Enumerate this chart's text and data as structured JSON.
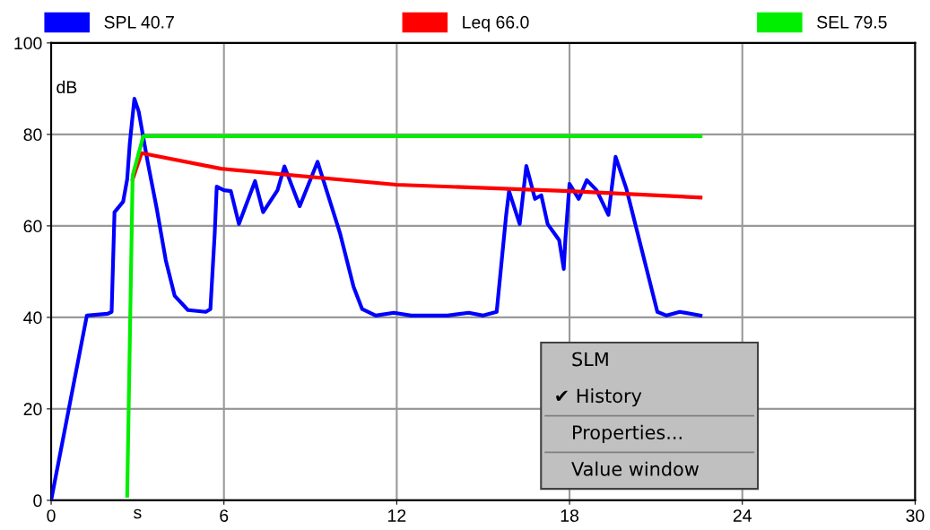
{
  "chart_data": {
    "type": "line",
    "ylabel": "dB",
    "xlabel": "s",
    "xlim": [
      0,
      30
    ],
    "xticks": [
      0,
      6,
      12,
      18,
      24,
      30
    ],
    "ylim": [
      0,
      100
    ],
    "yticks": [
      0,
      20,
      40,
      60,
      80,
      100
    ],
    "grid": true,
    "legend": "top",
    "marker": "none",
    "line_style": "solid",
    "annotations": [
      "SLM",
      "✔ History",
      "Properties...",
      "Value window"
    ],
    "series": [
      {
        "name": "SPL 40.7",
        "color": "#0000ff",
        "x": [
          0,
          1.24,
          1.96,
          2.1,
          2.2,
          2.5,
          2.64,
          2.73,
          2.89,
          3.04,
          3.35,
          3.66,
          3.98,
          4.29,
          4.75,
          5.37,
          5.53,
          5.68,
          5.75,
          6.0,
          6.24,
          6.52,
          7.08,
          7.36,
          7.86,
          8.1,
          8.63,
          9.25,
          10.03,
          10.5,
          10.8,
          11.27,
          11.9,
          12.5,
          13.76,
          14.5,
          15.0,
          15.47,
          15.8,
          15.9,
          16.27,
          16.5,
          16.8,
          17.02,
          17.24,
          17.64,
          17.8,
          17.86,
          18.0,
          18.32,
          18.6,
          18.94,
          19.35,
          19.6,
          19.97,
          20.6,
          21.05,
          21.37,
          21.83,
          22.55
        ],
        "values": [
          0,
          40.4,
          40.8,
          41.2,
          63,
          65.3,
          70.2,
          78,
          87.8,
          85,
          74,
          64,
          52.5,
          44.7,
          41.6,
          41.2,
          41.8,
          58.4,
          68.6,
          67.8,
          67.6,
          60.4,
          69.8,
          63,
          67.8,
          73,
          64.3,
          74,
          58.4,
          46.7,
          41.8,
          40.4,
          41,
          40.4,
          40.4,
          41,
          40.4,
          41.2,
          62.4,
          67.6,
          60.4,
          73.1,
          65.9,
          66.7,
          60.4,
          56.9,
          50.6,
          57.5,
          69.2,
          65.9,
          70,
          67.8,
          62.4,
          75.1,
          68.2,
          52.5,
          41.2,
          40.4,
          41.2,
          40.4
        ]
      },
      {
        "name": "Leq 66.0",
        "color": "#ff0000",
        "x": [
          2.83,
          3.14,
          5.9,
          12,
          18,
          22.55
        ],
        "values": [
          70.2,
          75.9,
          72.5,
          69,
          67.6,
          66.2
        ]
      },
      {
        "name": "SEL 79.5",
        "color": "#00ee00",
        "x": [
          2.64,
          2.83,
          3.2,
          22.55
        ],
        "values": [
          1,
          71,
          79.6,
          79.6
        ]
      }
    ]
  }
}
